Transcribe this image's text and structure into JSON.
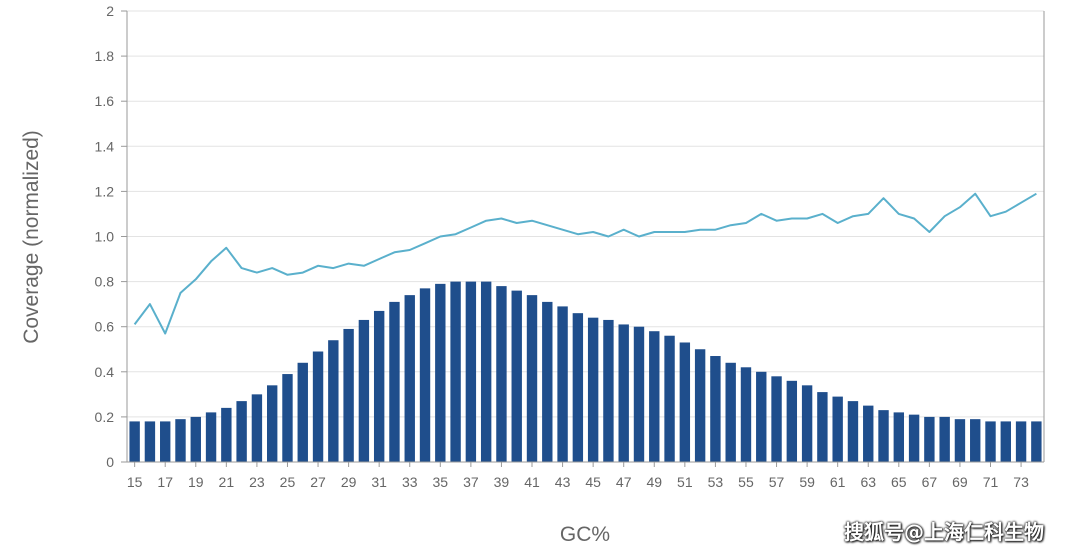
{
  "chart_data": {
    "type": "bar+line",
    "x": [
      15,
      16,
      17,
      18,
      19,
      20,
      21,
      22,
      23,
      24,
      25,
      26,
      27,
      28,
      29,
      30,
      31,
      32,
      33,
      34,
      35,
      36,
      37,
      38,
      39,
      40,
      41,
      42,
      43,
      44,
      45,
      46,
      47,
      48,
      49,
      50,
      51,
      52,
      53,
      54,
      55,
      56,
      57,
      58,
      59,
      60,
      61,
      62,
      63,
      64,
      65,
      66,
      67,
      68,
      69,
      70,
      71,
      72,
      73,
      74
    ],
    "x_tick_labels": [
      "15",
      "17",
      "19",
      "21",
      "23",
      "25",
      "27",
      "29",
      "31",
      "33",
      "35",
      "37",
      "39",
      "41",
      "43",
      "45",
      "47",
      "49",
      "51",
      "53",
      "55",
      "57",
      "59",
      "61",
      "63",
      "65",
      "67",
      "69",
      "71",
      "73"
    ],
    "series": [
      {
        "type": "bar",
        "color": "#1f4e8c",
        "values": [
          0.18,
          0.18,
          0.18,
          0.19,
          0.2,
          0.22,
          0.24,
          0.27,
          0.3,
          0.34,
          0.39,
          0.44,
          0.49,
          0.54,
          0.59,
          0.63,
          0.67,
          0.71,
          0.74,
          0.77,
          0.79,
          0.8,
          0.8,
          0.8,
          0.78,
          0.76,
          0.74,
          0.71,
          0.69,
          0.66,
          0.64,
          0.63,
          0.61,
          0.6,
          0.58,
          0.56,
          0.53,
          0.5,
          0.47,
          0.44,
          0.42,
          0.4,
          0.38,
          0.36,
          0.34,
          0.31,
          0.29,
          0.27,
          0.25,
          0.23,
          0.22,
          0.21,
          0.2,
          0.2,
          0.19,
          0.19,
          0.18,
          0.18,
          0.18,
          0.18
        ]
      },
      {
        "type": "line",
        "color": "#5ab0cc",
        "values": [
          0.61,
          0.7,
          0.57,
          0.75,
          0.81,
          0.89,
          0.95,
          0.86,
          0.84,
          0.86,
          0.83,
          0.84,
          0.87,
          0.86,
          0.88,
          0.87,
          0.9,
          0.93,
          0.94,
          0.97,
          1.0,
          1.01,
          1.04,
          1.07,
          1.08,
          1.06,
          1.07,
          1.05,
          1.03,
          1.01,
          1.02,
          1.0,
          1.03,
          1.0,
          1.02,
          1.02,
          1.02,
          1.03,
          1.03,
          1.05,
          1.06,
          1.1,
          1.07,
          1.08,
          1.08,
          1.1,
          1.06,
          1.09,
          1.1,
          1.17,
          1.1,
          1.08,
          1.02,
          1.09,
          1.13,
          1.19,
          1.09,
          1.11,
          1.15,
          1.19
        ]
      }
    ],
    "ylim": [
      0,
      2
    ],
    "y_ticks": [
      "0",
      "0.2",
      "0.4",
      "0.6",
      "0.8",
      "1.0",
      "1.2",
      "1.4",
      "1.6",
      "1.8",
      "2"
    ],
    "xlabel": "GC%",
    "ylabel": "Coverage (normalized)",
    "grid": "horizontal",
    "gridline_color": "#e3e3e3",
    "axis_color": "#9a9a9a"
  },
  "watermark": "搜狐号@上海仁科生物"
}
